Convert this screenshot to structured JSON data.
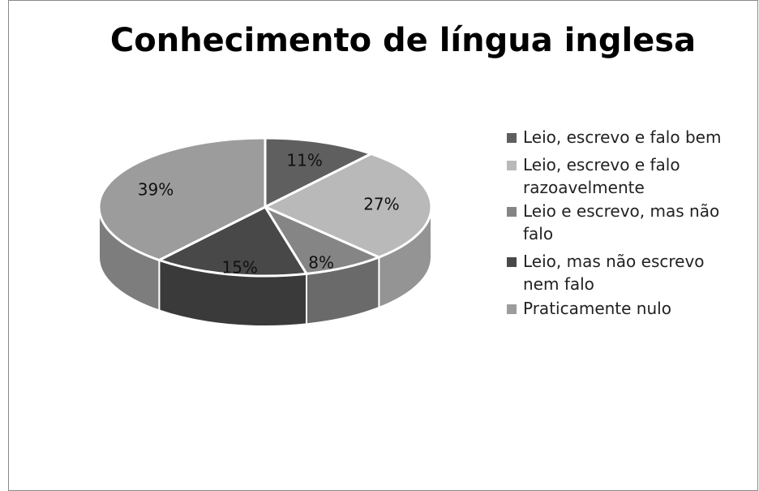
{
  "chart_data": {
    "type": "pie3d",
    "title": "Conhecimento de língua inglesa",
    "categories": [
      "Leio, escrevo e falo bem",
      "Leio, escrevo e falo razoavelmente",
      "Leio e escrevo, mas não falo",
      "Leio, mas não escrevo nem falo",
      "Praticamente nulo"
    ],
    "values": [
      11,
      27,
      8,
      15,
      39
    ],
    "value_labels": [
      "11%",
      "27%",
      "8%",
      "15%",
      "39%"
    ],
    "colors": [
      "#5f5f5f",
      "#b9b9b9",
      "#858585",
      "#484848",
      "#9c9c9c"
    ],
    "legend": "right"
  }
}
